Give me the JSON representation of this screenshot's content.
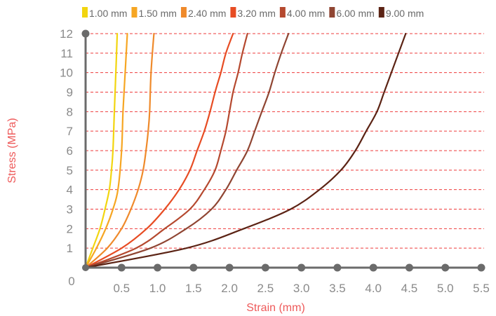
{
  "chart_data": {
    "type": "line",
    "title": "",
    "xlabel": "Strain (mm)",
    "ylabel": "Stress (MPa)",
    "origin_label": "0",
    "xlim": [
      0,
      5.5
    ],
    "ylim": [
      0,
      12
    ],
    "x_ticks": [
      0.5,
      1.0,
      1.5,
      2.0,
      2.5,
      3.0,
      3.5,
      4.0,
      4.5,
      5.0,
      5.5
    ],
    "x_tick_labels": [
      "0.5",
      "1.0",
      "1.5",
      "2.0",
      "2.5",
      "3.0",
      "3.5",
      "4.0",
      "4.5",
      "5.0",
      "5.5"
    ],
    "y_ticks": [
      1,
      2,
      3,
      4,
      5,
      6,
      7,
      8,
      9,
      10,
      11,
      12
    ],
    "y_tick_labels": [
      "1",
      "2",
      "3",
      "4",
      "5",
      "6",
      "7",
      "8",
      "9",
      "10",
      "11",
      "12"
    ],
    "grid": "horizontal dashed",
    "grid_color": "#ee3b3b",
    "axis_color": "#6b6b6b",
    "legend_position": "top",
    "series": [
      {
        "name": "1.00 mm",
        "color": "#f2d50f",
        "points": [
          [
            0,
            0
          ],
          [
            0.1,
            1
          ],
          [
            0.2,
            2
          ],
          [
            0.27,
            3
          ],
          [
            0.33,
            4
          ],
          [
            0.36,
            5
          ],
          [
            0.38,
            6
          ],
          [
            0.4,
            8
          ],
          [
            0.42,
            10
          ],
          [
            0.44,
            12
          ]
        ]
      },
      {
        "name": "1.50 mm",
        "color": "#f6a623",
        "points": [
          [
            0,
            0
          ],
          [
            0.15,
            1
          ],
          [
            0.28,
            2
          ],
          [
            0.38,
            3
          ],
          [
            0.45,
            4
          ],
          [
            0.5,
            6
          ],
          [
            0.52,
            8
          ],
          [
            0.55,
            10
          ],
          [
            0.58,
            12
          ]
        ]
      },
      {
        "name": "2.40 mm",
        "color": "#ef8a2b",
        "points": [
          [
            0,
            0
          ],
          [
            0.3,
            1
          ],
          [
            0.5,
            2
          ],
          [
            0.63,
            3
          ],
          [
            0.73,
            4
          ],
          [
            0.8,
            5
          ],
          [
            0.84,
            6
          ],
          [
            0.87,
            7
          ],
          [
            0.89,
            8
          ],
          [
            0.91,
            10
          ],
          [
            0.95,
            12
          ]
        ]
      },
      {
        "name": "3.20 mm",
        "color": "#e74c23",
        "points": [
          [
            0,
            0
          ],
          [
            0.5,
            1
          ],
          [
            0.85,
            2
          ],
          [
            1.1,
            3
          ],
          [
            1.3,
            4
          ],
          [
            1.45,
            5
          ],
          [
            1.55,
            6
          ],
          [
            1.65,
            7
          ],
          [
            1.73,
            8
          ],
          [
            1.8,
            9
          ],
          [
            1.88,
            10
          ],
          [
            1.95,
            11
          ],
          [
            2.05,
            12
          ]
        ]
      },
      {
        "name": "4.00 mm",
        "color": "#b5492f",
        "points": [
          [
            0,
            0
          ],
          [
            0.7,
            1
          ],
          [
            1.1,
            2
          ],
          [
            1.45,
            3
          ],
          [
            1.65,
            4
          ],
          [
            1.8,
            5
          ],
          [
            1.88,
            6
          ],
          [
            1.95,
            7
          ],
          [
            2.0,
            8
          ],
          [
            2.05,
            9
          ],
          [
            2.12,
            10
          ],
          [
            2.18,
            11
          ],
          [
            2.25,
            12
          ]
        ]
      },
      {
        "name": "6.00 mm",
        "color": "#8f4532",
        "points": [
          [
            0,
            0
          ],
          [
            0.9,
            1
          ],
          [
            1.4,
            2
          ],
          [
            1.75,
            3
          ],
          [
            1.95,
            4
          ],
          [
            2.1,
            5
          ],
          [
            2.25,
            6
          ],
          [
            2.35,
            7
          ],
          [
            2.45,
            8
          ],
          [
            2.55,
            9
          ],
          [
            2.63,
            10
          ],
          [
            2.72,
            11
          ],
          [
            2.82,
            12
          ]
        ]
      },
      {
        "name": "9.00 mm",
        "color": "#5b2314",
        "points": [
          [
            0,
            0
          ],
          [
            1.4,
            1
          ],
          [
            2.2,
            2
          ],
          [
            2.85,
            3
          ],
          [
            3.25,
            4
          ],
          [
            3.55,
            5
          ],
          [
            3.75,
            6
          ],
          [
            3.9,
            7
          ],
          [
            4.05,
            8
          ],
          [
            4.15,
            9
          ],
          [
            4.25,
            10
          ],
          [
            4.35,
            11
          ],
          [
            4.45,
            12
          ]
        ]
      }
    ]
  }
}
